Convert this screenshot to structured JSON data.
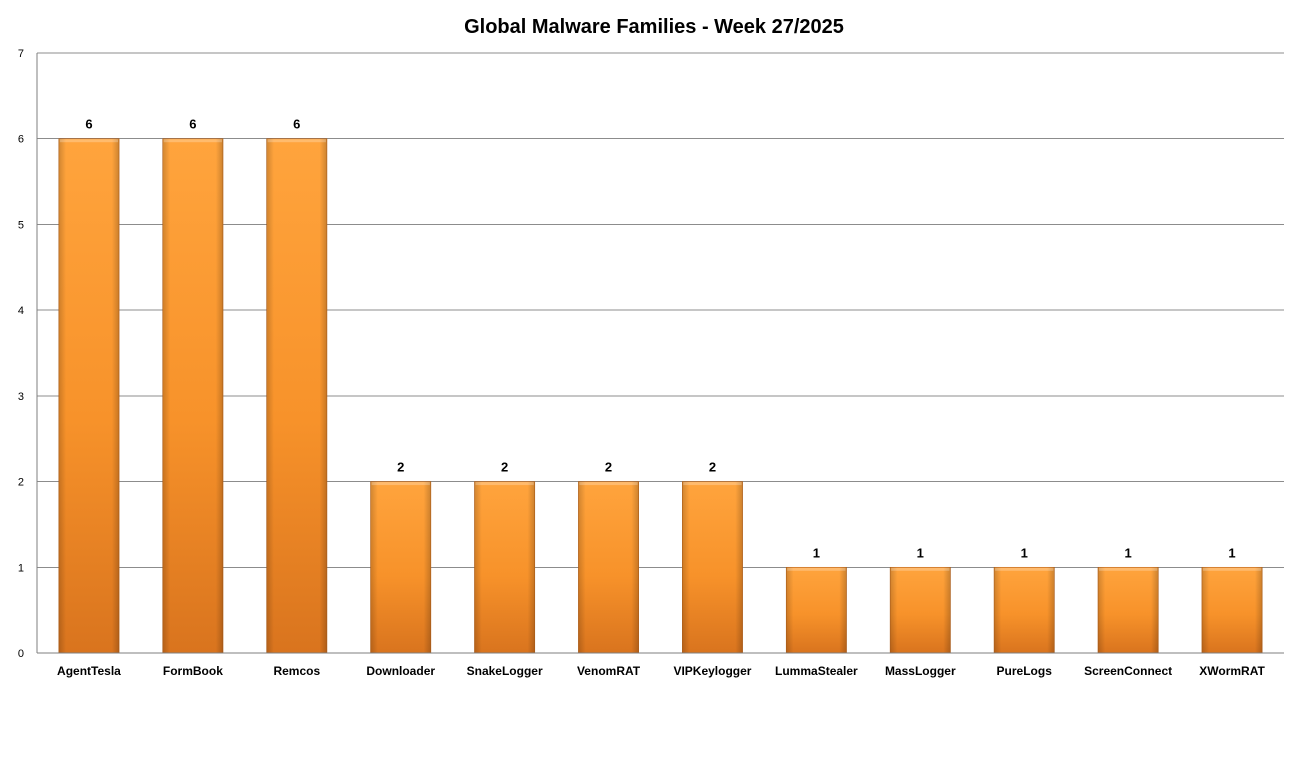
{
  "chart_data": {
    "type": "bar",
    "title": "Global Malware Families - Week 27/2025",
    "categories": [
      "AgentTesla",
      "FormBook",
      "Remcos",
      "Downloader",
      "SnakeLogger",
      "VenomRAT",
      "VIPKeylogger",
      "LummaStealer",
      "MassLogger",
      "PureLogs",
      "ScreenConnect",
      "XWormRAT"
    ],
    "values": [
      6,
      6,
      6,
      2,
      2,
      2,
      2,
      1,
      1,
      1,
      1,
      1
    ],
    "xlabel": "",
    "ylabel": "",
    "ylim": [
      0,
      7
    ],
    "yticks": [
      0,
      1,
      2,
      3,
      4,
      5,
      6,
      7
    ],
    "grid": true,
    "legend": "none",
    "data_labels": true,
    "colors": {
      "bar_light": "#FFA43D",
      "bar_mid": "#F7922A",
      "bar_dark": "#D9741E",
      "bar_edge": "#B8621A",
      "gridline": "#8C8C8C",
      "axis": "#7F7F7F"
    }
  }
}
